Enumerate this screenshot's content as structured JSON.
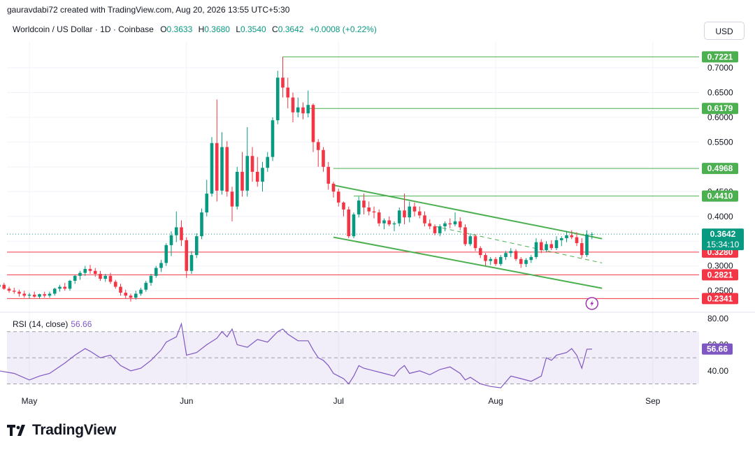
{
  "attribution": "gauravdabi72 created with TradingView.com, Aug 20, 2026 13:55 UTC+5:30",
  "legend": {
    "symbol": "Worldcoin / US Dollar · 1D · Coinbase",
    "open_label": "O",
    "open": "0.3633",
    "high_label": "H",
    "high": "0.3680",
    "low_label": "L",
    "low": "0.3540",
    "close_label": "C",
    "close": "0.3642",
    "change": "+0.0008 (+0.22%)"
  },
  "currency": "USD",
  "rsi": {
    "label": "RSI (14, close)",
    "value": "56.66",
    "upper": 70,
    "lower": 30
  },
  "branding": "TradingView",
  "colors": {
    "up": "#089981",
    "down": "#f23645",
    "level_green": "#4caf50",
    "level_red": "#f23645",
    "rsi": "#7e57c2"
  },
  "chart_data": {
    "type": "candlestick",
    "price_ticks": [
      "0.7000",
      "0.6500",
      "0.6000",
      "0.5500",
      "0.4500",
      "0.4000",
      "0.3000",
      "0.2500"
    ],
    "rsi_ticks": [
      "80.00",
      "60.00",
      "40.00"
    ],
    "x_labels": [
      "May",
      "Jun",
      "Jul",
      "Aug",
      "Sep"
    ],
    "levels": [
      {
        "value": 0.7221,
        "label": "0.7221",
        "kind": "resistance"
      },
      {
        "value": 0.6179,
        "label": "0.6179",
        "kind": "resistance"
      },
      {
        "value": 0.4968,
        "label": "0.4968",
        "kind": "resistance"
      },
      {
        "value": 0.441,
        "label": "0.4410",
        "kind": "resistance"
      },
      {
        "value": 0.328,
        "label": "0.3280",
        "kind": "support"
      },
      {
        "value": 0.2821,
        "label": "0.2821",
        "kind": "support"
      },
      {
        "value": 0.2341,
        "label": "0.2341",
        "kind": "support"
      }
    ],
    "last_price": {
      "value": 0.3642,
      "label": "0.3642",
      "countdown": "15:34:10"
    },
    "channel": {
      "upper": [
        [
          "2026-06-30",
          0.463
        ],
        [
          "2026-08-22",
          0.355
        ]
      ],
      "lower": [
        [
          "2026-06-30",
          0.358
        ],
        [
          "2026-08-22",
          0.255
        ]
      ],
      "mid": [
        [
          "2026-07-20",
          0.38
        ],
        [
          "2026-08-22",
          0.306
        ]
      ]
    },
    "candles": [
      [
        "2026-04-25",
        0.258,
        0.268,
        0.252,
        0.262
      ],
      [
        "2026-04-26",
        0.262,
        0.266,
        0.252,
        0.254
      ],
      [
        "2026-04-27",
        0.254,
        0.258,
        0.246,
        0.25
      ],
      [
        "2026-04-28",
        0.25,
        0.256,
        0.244,
        0.248
      ],
      [
        "2026-04-29",
        0.248,
        0.252,
        0.238,
        0.244
      ],
      [
        "2026-04-30",
        0.244,
        0.25,
        0.236,
        0.24
      ],
      [
        "2026-05-01",
        0.24,
        0.246,
        0.234,
        0.242
      ],
      [
        "2026-05-02",
        0.242,
        0.248,
        0.236,
        0.238
      ],
      [
        "2026-05-03",
        0.238,
        0.244,
        0.234,
        0.243
      ],
      [
        "2026-05-04",
        0.243,
        0.248,
        0.236,
        0.24
      ],
      [
        "2026-05-05",
        0.24,
        0.248,
        0.236,
        0.244
      ],
      [
        "2026-05-06",
        0.244,
        0.256,
        0.24,
        0.254
      ],
      [
        "2026-05-07",
        0.254,
        0.262,
        0.248,
        0.258
      ],
      [
        "2026-05-08",
        0.258,
        0.266,
        0.25,
        0.254
      ],
      [
        "2026-05-09",
        0.254,
        0.272,
        0.25,
        0.27
      ],
      [
        "2026-05-10",
        0.27,
        0.282,
        0.264,
        0.28
      ],
      [
        "2026-05-11",
        0.28,
        0.29,
        0.272,
        0.286
      ],
      [
        "2026-05-12",
        0.286,
        0.3,
        0.28,
        0.294
      ],
      [
        "2026-05-13",
        0.294,
        0.302,
        0.284,
        0.29
      ],
      [
        "2026-05-14",
        0.29,
        0.296,
        0.278,
        0.284
      ],
      [
        "2026-05-15",
        0.284,
        0.29,
        0.27,
        0.274
      ],
      [
        "2026-05-16",
        0.274,
        0.284,
        0.268,
        0.28
      ],
      [
        "2026-05-17",
        0.28,
        0.286,
        0.264,
        0.268
      ],
      [
        "2026-05-18",
        0.268,
        0.272,
        0.254,
        0.258
      ],
      [
        "2026-05-19",
        0.258,
        0.264,
        0.24,
        0.246
      ],
      [
        "2026-05-20",
        0.246,
        0.252,
        0.234,
        0.24
      ],
      [
        "2026-05-21",
        0.24,
        0.244,
        0.228,
        0.236
      ],
      [
        "2026-05-22",
        0.236,
        0.25,
        0.232,
        0.244
      ],
      [
        "2026-05-23",
        0.244,
        0.256,
        0.24,
        0.252
      ],
      [
        "2026-05-24",
        0.252,
        0.27,
        0.248,
        0.266
      ],
      [
        "2026-05-25",
        0.266,
        0.284,
        0.26,
        0.28
      ],
      [
        "2026-05-26",
        0.28,
        0.3,
        0.276,
        0.296
      ],
      [
        "2026-05-27",
        0.296,
        0.312,
        0.288,
        0.306
      ],
      [
        "2026-05-28",
        0.306,
        0.346,
        0.3,
        0.342
      ],
      [
        "2026-05-29",
        0.342,
        0.37,
        0.32,
        0.362
      ],
      [
        "2026-05-30",
        0.362,
        0.41,
        0.348,
        0.378
      ],
      [
        "2026-05-31",
        0.378,
        0.392,
        0.34,
        0.352
      ],
      [
        "2026-06-01",
        0.352,
        0.358,
        0.276,
        0.29
      ],
      [
        "2026-06-02",
        0.29,
        0.33,
        0.284,
        0.322
      ],
      [
        "2026-06-03",
        0.322,
        0.366,
        0.316,
        0.36
      ],
      [
        "2026-06-04",
        0.36,
        0.416,
        0.354,
        0.408
      ],
      [
        "2026-06-05",
        0.408,
        0.474,
        0.4,
        0.446
      ],
      [
        "2026-06-06",
        0.446,
        0.56,
        0.44,
        0.548
      ],
      [
        "2026-06-07",
        0.548,
        0.636,
        0.43,
        0.452
      ],
      [
        "2026-06-08",
        0.452,
        0.57,
        0.444,
        0.54
      ],
      [
        "2026-06-09",
        0.54,
        0.552,
        0.44,
        0.45
      ],
      [
        "2026-06-10",
        0.45,
        0.46,
        0.39,
        0.42
      ],
      [
        "2026-06-11",
        0.42,
        0.5,
        0.414,
        0.49
      ],
      [
        "2026-06-12",
        0.49,
        0.53,
        0.44,
        0.452
      ],
      [
        "2026-06-13",
        0.452,
        0.58,
        0.44,
        0.522
      ],
      [
        "2026-06-14",
        0.522,
        0.54,
        0.47,
        0.49
      ],
      [
        "2026-06-15",
        0.49,
        0.52,
        0.46,
        0.47
      ],
      [
        "2026-06-16",
        0.47,
        0.51,
        0.45,
        0.498
      ],
      [
        "2026-06-17",
        0.498,
        0.53,
        0.49,
        0.52
      ],
      [
        "2026-06-18",
        0.52,
        0.6,
        0.512,
        0.594
      ],
      [
        "2026-06-19",
        0.594,
        0.694,
        0.586,
        0.68
      ],
      [
        "2026-06-20",
        0.68,
        0.722,
        0.64,
        0.66
      ],
      [
        "2026-06-21",
        0.66,
        0.68,
        0.618,
        0.64
      ],
      [
        "2026-06-22",
        0.64,
        0.65,
        0.59,
        0.61
      ],
      [
        "2026-06-23",
        0.61,
        0.64,
        0.6,
        0.62
      ],
      [
        "2026-06-24",
        0.62,
        0.63,
        0.596,
        0.608
      ],
      [
        "2026-06-25",
        0.608,
        0.654,
        0.6,
        0.625
      ],
      [
        "2026-06-26",
        0.625,
        0.628,
        0.53,
        0.55
      ],
      [
        "2026-06-27",
        0.55,
        0.556,
        0.5,
        0.534
      ],
      [
        "2026-06-28",
        0.534,
        0.54,
        0.49,
        0.5
      ],
      [
        "2026-06-29",
        0.5,
        0.51,
        0.454,
        0.466
      ],
      [
        "2026-06-30",
        0.466,
        0.47,
        0.438,
        0.45
      ],
      [
        "2026-07-01",
        0.45,
        0.456,
        0.42,
        0.428
      ],
      [
        "2026-07-02",
        0.428,
        0.43,
        0.4,
        0.414
      ],
      [
        "2026-07-03",
        0.414,
        0.42,
        0.356,
        0.36
      ],
      [
        "2026-07-04",
        0.36,
        0.408,
        0.356,
        0.404
      ],
      [
        "2026-07-05",
        0.404,
        0.44,
        0.398,
        0.432
      ],
      [
        "2026-07-06",
        0.432,
        0.446,
        0.404,
        0.418
      ],
      [
        "2026-07-07",
        0.418,
        0.43,
        0.402,
        0.41
      ],
      [
        "2026-07-08",
        0.41,
        0.42,
        0.396,
        0.408
      ],
      [
        "2026-07-09",
        0.408,
        0.414,
        0.38,
        0.386
      ],
      [
        "2026-07-10",
        0.386,
        0.396,
        0.374,
        0.392
      ],
      [
        "2026-07-11",
        0.392,
        0.4,
        0.38,
        0.384
      ],
      [
        "2026-07-12",
        0.384,
        0.39,
        0.37,
        0.386
      ],
      [
        "2026-07-13",
        0.386,
        0.418,
        0.38,
        0.412
      ],
      [
        "2026-07-14",
        0.412,
        0.446,
        0.384,
        0.398
      ],
      [
        "2026-07-15",
        0.398,
        0.43,
        0.388,
        0.42
      ],
      [
        "2026-07-16",
        0.42,
        0.428,
        0.4,
        0.41
      ],
      [
        "2026-07-17",
        0.41,
        0.42,
        0.396,
        0.402
      ],
      [
        "2026-07-18",
        0.402,
        0.41,
        0.38,
        0.386
      ],
      [
        "2026-07-19",
        0.386,
        0.394,
        0.374,
        0.38
      ],
      [
        "2026-07-20",
        0.38,
        0.384,
        0.362,
        0.366
      ],
      [
        "2026-07-21",
        0.366,
        0.384,
        0.36,
        0.38
      ],
      [
        "2026-07-22",
        0.38,
        0.39,
        0.37,
        0.386
      ],
      [
        "2026-07-23",
        0.386,
        0.396,
        0.376,
        0.384
      ],
      [
        "2026-07-24",
        0.384,
        0.408,
        0.38,
        0.39
      ],
      [
        "2026-07-25",
        0.39,
        0.398,
        0.372,
        0.378
      ],
      [
        "2026-07-26",
        0.378,
        0.384,
        0.34,
        0.344
      ],
      [
        "2026-07-27",
        0.344,
        0.366,
        0.34,
        0.36
      ],
      [
        "2026-07-28",
        0.36,
        0.364,
        0.33,
        0.336
      ],
      [
        "2026-07-29",
        0.336,
        0.34,
        0.316,
        0.322
      ],
      [
        "2026-07-30",
        0.322,
        0.326,
        0.3,
        0.31
      ],
      [
        "2026-07-31",
        0.31,
        0.318,
        0.302,
        0.314
      ],
      [
        "2026-08-01",
        0.314,
        0.318,
        0.3,
        0.304
      ],
      [
        "2026-08-02",
        0.304,
        0.322,
        0.3,
        0.318
      ],
      [
        "2026-08-03",
        0.318,
        0.33,
        0.312,
        0.326
      ],
      [
        "2026-08-04",
        0.326,
        0.336,
        0.318,
        0.33
      ],
      [
        "2026-08-05",
        0.33,
        0.334,
        0.31,
        0.314
      ],
      [
        "2026-08-06",
        0.314,
        0.318,
        0.296,
        0.304
      ],
      [
        "2026-08-07",
        0.304,
        0.316,
        0.298,
        0.312
      ],
      [
        "2026-08-08",
        0.312,
        0.322,
        0.306,
        0.318
      ],
      [
        "2026-08-09",
        0.318,
        0.356,
        0.314,
        0.348
      ],
      [
        "2026-08-10",
        0.348,
        0.354,
        0.326,
        0.332
      ],
      [
        "2026-08-11",
        0.332,
        0.35,
        0.328,
        0.344
      ],
      [
        "2026-08-12",
        0.344,
        0.352,
        0.332,
        0.336
      ],
      [
        "2026-08-13",
        0.336,
        0.36,
        0.332,
        0.352
      ],
      [
        "2026-08-14",
        0.352,
        0.36,
        0.34,
        0.356
      ],
      [
        "2026-08-15",
        0.356,
        0.37,
        0.348,
        0.362
      ],
      [
        "2026-08-16",
        0.362,
        0.372,
        0.354,
        0.358
      ],
      [
        "2026-08-17",
        0.358,
        0.368,
        0.34,
        0.346
      ],
      [
        "2026-08-18",
        0.346,
        0.356,
        0.316,
        0.322
      ],
      [
        "2026-08-19",
        0.322,
        0.372,
        0.318,
        0.3634
      ],
      [
        "2026-08-20",
        0.3633,
        0.368,
        0.354,
        0.3642
      ]
    ],
    "rsi_series": [
      [
        "2026-04-25",
        40
      ],
      [
        "2026-04-28",
        38
      ],
      [
        "2026-05-01",
        33
      ],
      [
        "2026-05-03",
        36
      ],
      [
        "2026-05-05",
        38
      ],
      [
        "2026-05-08",
        46
      ],
      [
        "2026-05-10",
        52
      ],
      [
        "2026-05-12",
        57
      ],
      [
        "2026-05-13",
        55
      ],
      [
        "2026-05-15",
        50
      ],
      [
        "2026-05-17",
        52
      ],
      [
        "2026-05-19",
        44
      ],
      [
        "2026-05-21",
        40
      ],
      [
        "2026-05-23",
        42
      ],
      [
        "2026-05-25",
        48
      ],
      [
        "2026-05-27",
        56
      ],
      [
        "2026-05-28",
        62
      ],
      [
        "2026-05-29",
        64
      ],
      [
        "2026-05-30",
        66
      ],
      [
        "2026-05-31",
        76
      ],
      [
        "2026-06-01",
        52
      ],
      [
        "2026-06-03",
        54
      ],
      [
        "2026-06-05",
        60
      ],
      [
        "2026-06-07",
        65
      ],
      [
        "2026-06-08",
        70
      ],
      [
        "2026-06-09",
        66
      ],
      [
        "2026-06-10",
        72
      ],
      [
        "2026-06-11",
        60
      ],
      [
        "2026-06-13",
        58
      ],
      [
        "2026-06-15",
        64
      ],
      [
        "2026-06-17",
        62
      ],
      [
        "2026-06-18",
        66
      ],
      [
        "2026-06-19",
        70
      ],
      [
        "2026-06-20",
        72
      ],
      [
        "2026-06-21",
        68
      ],
      [
        "2026-06-23",
        63
      ],
      [
        "2026-06-25",
        63
      ],
      [
        "2026-06-26",
        56
      ],
      [
        "2026-06-27",
        50
      ],
      [
        "2026-06-28",
        48
      ],
      [
        "2026-06-29",
        44
      ],
      [
        "2026-06-30",
        38
      ],
      [
        "2026-07-01",
        36
      ],
      [
        "2026-07-02",
        34
      ],
      [
        "2026-07-03",
        30
      ],
      [
        "2026-07-04",
        36
      ],
      [
        "2026-07-05",
        44
      ],
      [
        "2026-07-06",
        42
      ],
      [
        "2026-07-08",
        40
      ],
      [
        "2026-07-10",
        38
      ],
      [
        "2026-07-12",
        36
      ],
      [
        "2026-07-13",
        41
      ],
      [
        "2026-07-14",
        44
      ],
      [
        "2026-07-15",
        38
      ],
      [
        "2026-07-17",
        40
      ],
      [
        "2026-07-19",
        37
      ],
      [
        "2026-07-21",
        41
      ],
      [
        "2026-07-23",
        43
      ],
      [
        "2026-07-25",
        38
      ],
      [
        "2026-07-26",
        33
      ],
      [
        "2026-07-27",
        35
      ],
      [
        "2026-07-29",
        30
      ],
      [
        "2026-07-31",
        28
      ],
      [
        "2026-08-02",
        27
      ],
      [
        "2026-08-04",
        36
      ],
      [
        "2026-08-06",
        34
      ],
      [
        "2026-08-08",
        32
      ],
      [
        "2026-08-10",
        36
      ],
      [
        "2026-08-11",
        50
      ],
      [
        "2026-08-12",
        48
      ],
      [
        "2026-08-13",
        52
      ],
      [
        "2026-08-15",
        54
      ],
      [
        "2026-08-16",
        57
      ],
      [
        "2026-08-17",
        52
      ],
      [
        "2026-08-18",
        42
      ],
      [
        "2026-08-19",
        56.5
      ],
      [
        "2026-08-20",
        56.66
      ]
    ]
  }
}
